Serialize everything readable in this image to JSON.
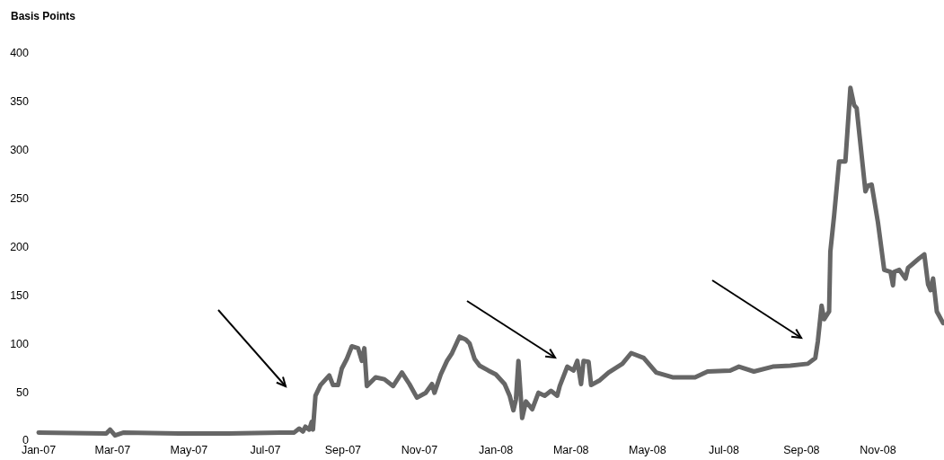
{
  "chart_data": {
    "type": "line",
    "ylabel": "Basis Points",
    "x": [
      "2007-01-01",
      "2007-02-24",
      "2007-02-27",
      "2007-03-03",
      "2007-03-10",
      "2007-04-23",
      "2007-05-31",
      "2007-07-13",
      "2007-07-24",
      "2007-07-28",
      "2007-07-31",
      "2007-08-02",
      "2007-08-05",
      "2007-08-07",
      "2007-08-08",
      "2007-08-10",
      "2007-08-14",
      "2007-08-21",
      "2007-08-24",
      "2007-08-28",
      "2007-08-31",
      "2007-09-04",
      "2007-09-08",
      "2007-09-13",
      "2007-09-16",
      "2007-09-18",
      "2007-09-20",
      "2007-09-27",
      "2007-10-04",
      "2007-10-11",
      "2007-10-18",
      "2007-10-24",
      "2007-10-30",
      "2007-11-06",
      "2007-11-11",
      "2007-11-13",
      "2007-11-18",
      "2007-11-23",
      "2007-11-27",
      "2007-12-03",
      "2007-12-08",
      "2007-12-11",
      "2007-12-15",
      "2007-12-19",
      "2007-12-26",
      "2008-01-01",
      "2008-01-08",
      "2008-01-12",
      "2008-01-15",
      "2008-01-17",
      "2008-01-19",
      "2008-01-22",
      "2008-01-25",
      "2008-01-30",
      "2008-02-04",
      "2008-02-09",
      "2008-02-14",
      "2008-02-19",
      "2008-02-21",
      "2008-02-27",
      "2008-03-03",
      "2008-03-06",
      "2008-03-09",
      "2008-03-11",
      "2008-03-15",
      "2008-03-17",
      "2008-03-24",
      "2008-03-31",
      "2008-04-11",
      "2008-04-18",
      "2008-04-28",
      "2008-05-08",
      "2008-05-21",
      "2008-06-08",
      "2008-06-18",
      "2008-07-06",
      "2008-07-13",
      "2008-07-25",
      "2008-08-09",
      "2008-08-23",
      "2008-09-06",
      "2008-09-12",
      "2008-09-14",
      "2008-09-17",
      "2008-09-19",
      "2008-09-23",
      "2008-09-24",
      "2008-09-27",
      "2008-10-01",
      "2008-10-06",
      "2008-10-10",
      "2008-10-13",
      "2008-10-15",
      "2008-10-22",
      "2008-10-24",
      "2008-10-27",
      "2008-11-01",
      "2008-11-06",
      "2008-11-11",
      "2008-11-13",
      "2008-11-14",
      "2008-11-18",
      "2008-11-23",
      "2008-11-25",
      "2008-12-04",
      "2008-12-08",
      "2008-12-11",
      "2008-12-13",
      "2008-12-15",
      "2008-12-18",
      "2008-12-23"
    ],
    "series": [
      {
        "color": "#666666",
        "values": [
          8,
          7,
          11,
          5,
          8,
          7,
          7,
          8,
          8,
          12,
          9,
          14,
          11,
          19,
          11,
          46,
          57,
          67,
          57,
          57,
          74,
          84,
          97,
          95,
          82,
          95,
          56,
          65,
          63,
          56,
          70,
          58,
          44,
          49,
          58,
          49,
          68,
          82,
          90,
          107,
          104,
          100,
          84,
          77,
          72,
          68,
          58,
          46,
          31,
          42,
          82,
          23,
          40,
          32,
          49,
          46,
          51,
          46,
          56,
          76,
          72,
          82,
          58,
          82,
          81,
          57,
          62,
          70,
          79,
          90,
          85,
          70,
          65,
          65,
          71,
          72,
          76,
          71,
          76,
          77,
          79,
          85,
          102,
          139,
          125,
          133,
          195,
          232,
          288,
          288,
          364,
          346,
          343,
          257,
          263,
          264,
          225,
          176,
          174,
          160,
          174,
          176,
          167,
          178,
          188,
          192,
          161,
          155,
          167,
          133,
          121
        ]
      }
    ],
    "xlim": [
      "2007-01-01",
      "2008-12-23"
    ],
    "xticks": [
      {
        "value": "2007-01-01",
        "label": "Jan-07"
      },
      {
        "value": "2007-03-01",
        "label": "Mar-07"
      },
      {
        "value": "2007-05-01",
        "label": "May-07"
      },
      {
        "value": "2007-07-01",
        "label": "Jul-07"
      },
      {
        "value": "2007-09-01",
        "label": "Sep-07"
      },
      {
        "value": "2007-11-01",
        "label": "Nov-07"
      },
      {
        "value": "2008-01-01",
        "label": "Jan-08"
      },
      {
        "value": "2008-03-01",
        "label": "Mar-08"
      },
      {
        "value": "2008-05-01",
        "label": "May-08"
      },
      {
        "value": "2008-07-01",
        "label": "Jul-08"
      },
      {
        "value": "2008-09-01",
        "label": "Sep-08"
      },
      {
        "value": "2008-11-01",
        "label": "Nov-08"
      }
    ],
    "ylim": [
      0,
      400
    ],
    "yticks": [
      0,
      50,
      100,
      150,
      200,
      250,
      300,
      350,
      400
    ],
    "grid": false,
    "marker": "none",
    "line_style": "solid"
  }
}
